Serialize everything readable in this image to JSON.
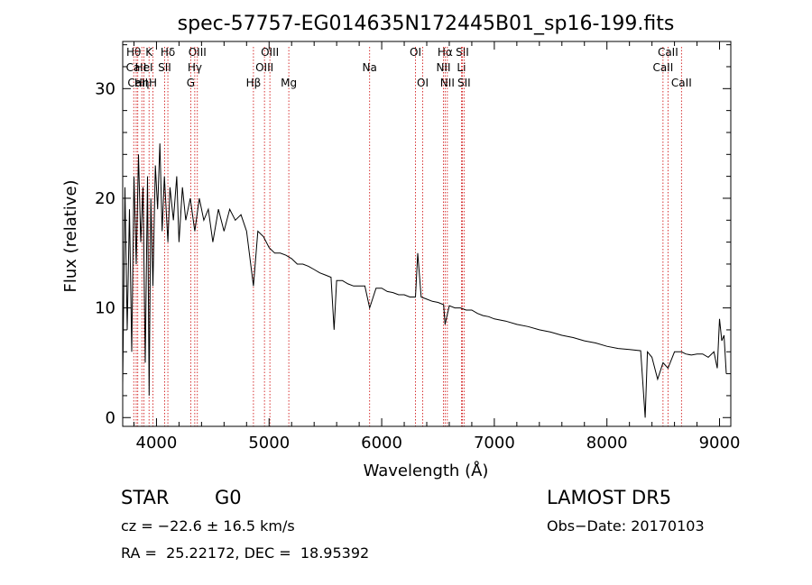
{
  "chart_data": {
    "type": "line",
    "title": "spec-57757-EG014635N172445B01_sp16-199.fits",
    "xlabel": "Wavelength (Å)",
    "ylabel": "Flux (relative)",
    "xlim": [
      3700,
      9100
    ],
    "ylim": [
      -0.8,
      34.3
    ],
    "xticks": [
      4000,
      5000,
      6000,
      7000,
      8000,
      9000
    ],
    "yticks": [
      0,
      10,
      20,
      30
    ],
    "line_color": "#000000",
    "marker_color": "#cc0000",
    "series": [
      {
        "x": [
          3700,
          3720,
          3740,
          3760,
          3780,
          3800,
          3820,
          3840,
          3860,
          3880,
          3900,
          3920,
          3935,
          3950,
          3968,
          3990,
          4010,
          4030,
          4050,
          4070,
          4101,
          4120,
          4150,
          4180,
          4200,
          4230,
          4260,
          4300,
          4340,
          4380,
          4420,
          4460,
          4500,
          4550,
          4600,
          4650,
          4700,
          4750,
          4800,
          4861,
          4900,
          4950,
          5000,
          5050,
          5100,
          5150,
          5200,
          5250,
          5300,
          5350,
          5400,
          5450,
          5500,
          5550,
          5577,
          5600,
          5650,
          5700,
          5750,
          5800,
          5850,
          5893,
          5950,
          6000,
          6050,
          6100,
          6150,
          6200,
          6250,
          6300,
          6320,
          6350,
          6400,
          6450,
          6500,
          6550,
          6563,
          6600,
          6650,
          6700,
          6750,
          6800,
          6850,
          6900,
          6950,
          7000,
          7100,
          7200,
          7300,
          7400,
          7500,
          7600,
          7700,
          7800,
          7900,
          8000,
          8100,
          8200,
          8300,
          8340,
          8360,
          8400,
          8450,
          8498,
          8542,
          8600,
          8662,
          8700,
          8750,
          8800,
          8850,
          8900,
          8950,
          8980,
          9000,
          9020,
          9040,
          9060
        ],
        "values": [
          3,
          21,
          8,
          19,
          6,
          22,
          14,
          24,
          16,
          21,
          5,
          22,
          2,
          20,
          12,
          23,
          19,
          25,
          17,
          22,
          16,
          21,
          18,
          22,
          16,
          21,
          18,
          20,
          17,
          20,
          18,
          19,
          16,
          19,
          17,
          19,
          18,
          18.5,
          17,
          12,
          17,
          16.5,
          15.5,
          15,
          15,
          14.8,
          14.5,
          14,
          14,
          13.8,
          13.5,
          13.2,
          13,
          12.8,
          8,
          12.5,
          12.5,
          12.2,
          12,
          12,
          12,
          10,
          11.8,
          11.8,
          11.5,
          11.4,
          11.2,
          11.2,
          11,
          11,
          15,
          11,
          10.8,
          10.6,
          10.5,
          10.3,
          8.5,
          10.2,
          10,
          10,
          9.8,
          9.8,
          9.5,
          9.3,
          9.2,
          9,
          8.8,
          8.5,
          8.3,
          8,
          7.8,
          7.5,
          7.3,
          7,
          6.8,
          6.5,
          6.3,
          6.2,
          6.1,
          0,
          6,
          5.5,
          3.5,
          5,
          4.5,
          6,
          6,
          5.8,
          5.7,
          5.8,
          5.8,
          5.5,
          6,
          4.5,
          9,
          7,
          7.5,
          4
        ]
      }
    ],
    "lines": [
      {
        "label": "Hθ",
        "x": 3798,
        "row": 0
      },
      {
        "label": "CaII",
        "x": 3820,
        "row": 1
      },
      {
        "label": "CaII",
        "x": 3834,
        "row": 2
      },
      {
        "label": "K",
        "x": 3934,
        "row": 0
      },
      {
        "label": "HeI",
        "x": 3889,
        "row": 1
      },
      {
        "label": "Hη",
        "x": 3870,
        "row": 2
      },
      {
        "label": "H",
        "x": 3969,
        "row": 2
      },
      {
        "label": "Hδ",
        "x": 4101,
        "row": 0
      },
      {
        "label": "SII",
        "x": 4072,
        "row": 1
      },
      {
        "label": "OIII",
        "x": 4363,
        "row": 0
      },
      {
        "label": "Hγ",
        "x": 4340,
        "row": 1
      },
      {
        "label": "G",
        "x": 4304,
        "row": 2
      },
      {
        "label": "OIII",
        "x": 5007,
        "row": 0
      },
      {
        "label": "OIII",
        "x": 4959,
        "row": 1
      },
      {
        "label": "Hβ",
        "x": 4861,
        "row": 2
      },
      {
        "label": "Mg",
        "x": 5175,
        "row": 2
      },
      {
        "label": "Na",
        "x": 5893,
        "row": 1
      },
      {
        "label": "OI",
        "x": 6300,
        "row": 0
      },
      {
        "label": "OI",
        "x": 6364,
        "row": 2
      },
      {
        "label": "Hα",
        "x": 6563,
        "row": 0
      },
      {
        "label": "NII",
        "x": 6548,
        "row": 1
      },
      {
        "label": "NII",
        "x": 6583,
        "row": 2
      },
      {
        "label": "SII",
        "x": 6716,
        "row": 0
      },
      {
        "label": "Li",
        "x": 6708,
        "row": 1
      },
      {
        "label": "SII",
        "x": 6731,
        "row": 2
      },
      {
        "label": "CaII",
        "x": 8542,
        "row": 0
      },
      {
        "label": "CaII",
        "x": 8498,
        "row": 1
      },
      {
        "label": "CaII",
        "x": 8662,
        "row": 2
      }
    ]
  },
  "footer": {
    "object_class": "STAR",
    "subclass": "G0",
    "survey": "LAMOST DR5",
    "cz": "cz = −22.6 ± 16.5 km/s",
    "obs_date": "Obs−Date: 20170103",
    "coords": "RA =  25.22172, DEC =  18.95392"
  }
}
